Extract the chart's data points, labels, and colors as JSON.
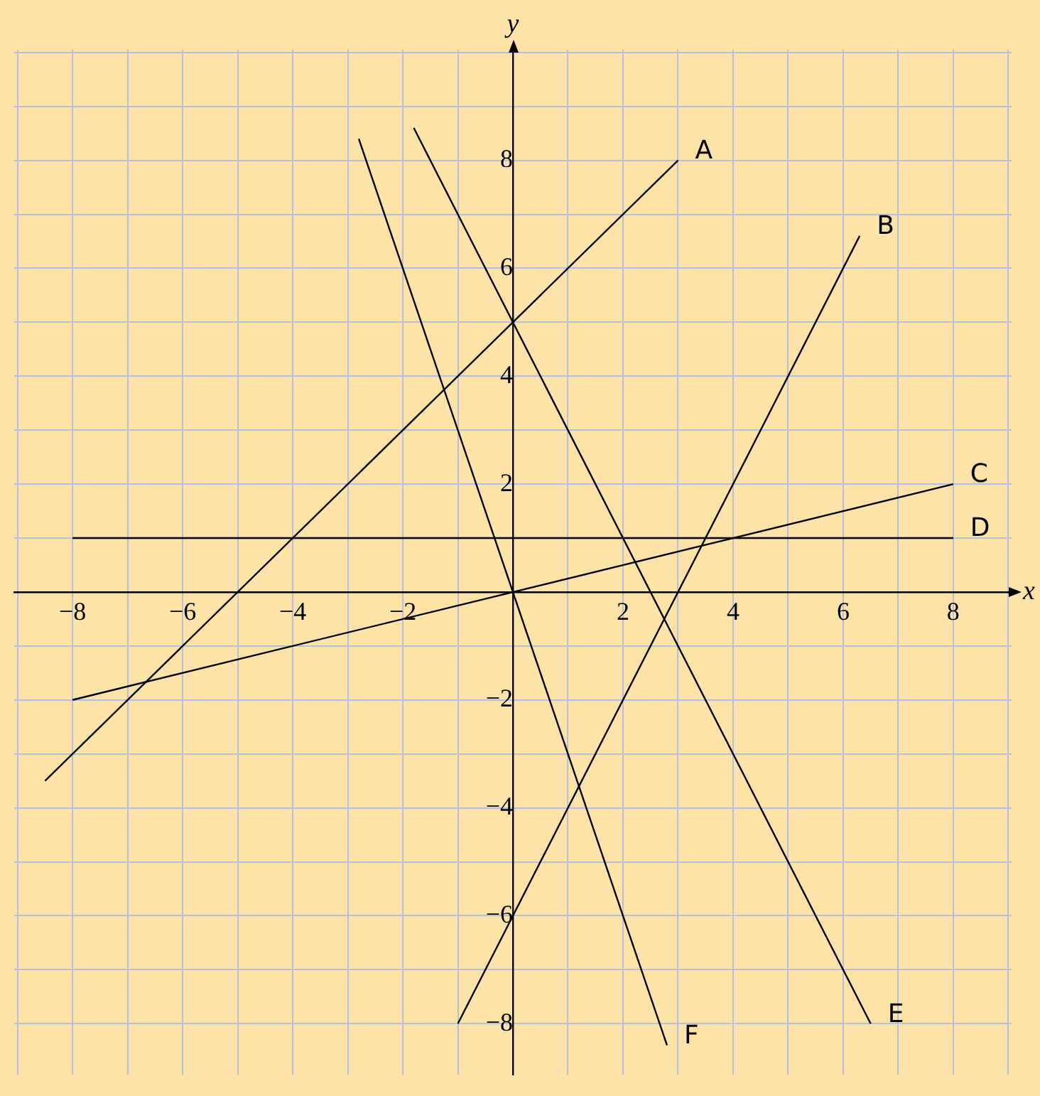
{
  "chart_data": {
    "type": "line",
    "xlabel": "x",
    "ylabel": "y",
    "xlim": [
      -9.06,
      9.06
    ],
    "ylim": [
      -8.95,
      10.05
    ],
    "xticks": [
      {
        "value": -9,
        "label": null
      },
      {
        "value": -8,
        "label": "−8"
      },
      {
        "value": -7,
        "label": null
      },
      {
        "value": -6,
        "label": "−6"
      },
      {
        "value": -5,
        "label": null
      },
      {
        "value": -4,
        "label": "−4"
      },
      {
        "value": -3,
        "label": null
      },
      {
        "value": -2,
        "label": "−2"
      },
      {
        "value": -1,
        "label": null
      },
      {
        "value": 1,
        "label": null
      },
      2,
      {
        "value": 3,
        "label": null
      },
      4,
      {
        "value": 5,
        "label": null
      },
      6,
      {
        "value": 7,
        "label": null
      },
      8,
      {
        "value": 9,
        "label": null
      }
    ],
    "yticks": [
      {
        "value": -8,
        "label": "−8"
      },
      {
        "value": -7,
        "label": null
      },
      {
        "value": -6,
        "label": "−6"
      },
      {
        "value": -5,
        "label": null
      },
      {
        "value": -4,
        "label": "−4"
      },
      {
        "value": -3,
        "label": null
      },
      {
        "value": -2,
        "label": "−2"
      },
      {
        "value": -1,
        "label": null
      },
      {
        "value": 1,
        "label": null
      },
      2,
      {
        "value": 3,
        "label": null
      },
      4,
      {
        "value": 5,
        "label": null
      },
      6,
      {
        "value": 7,
        "label": null
      },
      8,
      {
        "value": 9,
        "label": null
      },
      {
        "value": 10,
        "label": null
      }
    ],
    "grid": true,
    "legend": false,
    "marker": "none",
    "line_style": "solid",
    "series": [
      {
        "name": "A",
        "color": "#000000",
        "x": [
          -8.5,
          3
        ],
        "values": [
          -3.5,
          8
        ]
      },
      {
        "name": "B",
        "color": "#000000",
        "x": [
          -1,
          6.3
        ],
        "values": [
          -8,
          6.6
        ]
      },
      {
        "name": "C",
        "color": "#000000",
        "x": [
          -8,
          8
        ],
        "values": [
          -2,
          2
        ]
      },
      {
        "name": "D",
        "color": "#000000",
        "x": [
          -8,
          8
        ],
        "values": [
          1,
          1
        ]
      },
      {
        "name": "E",
        "color": "#000000",
        "x": [
          -1.8,
          6.5
        ],
        "values": [
          8.6,
          -8
        ]
      },
      {
        "name": "F",
        "color": "#000000",
        "x": [
          -2.8,
          2.8
        ],
        "values": [
          8.4,
          -8.4
        ]
      }
    ]
  }
}
